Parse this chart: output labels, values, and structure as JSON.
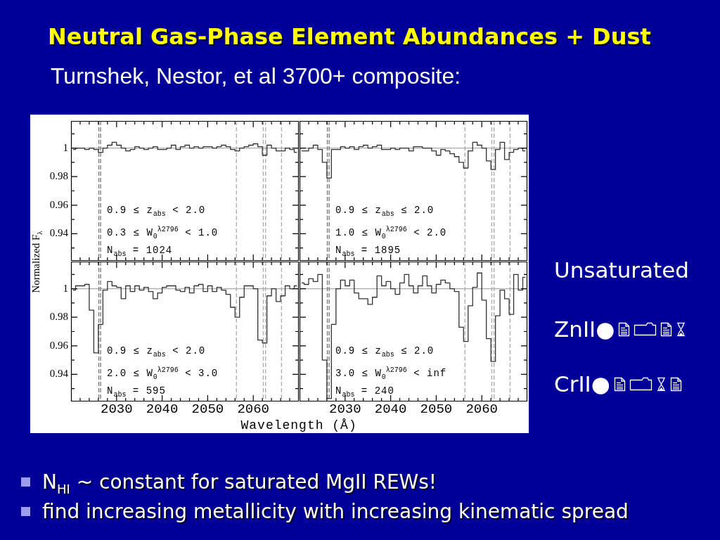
{
  "chart_data": [
    {
      "type": "other",
      "title": "Neutral Gas-Phase Element Abundances + Dust",
      "subtitle": "Turnshek, Nestor, et al 3700+ composite:",
      "annotations": [
        "Unsaturated",
        "ZnII●",
        "CrII●",
        "N$_{HI}$ ~ constant for saturated MgII REWs!",
        "find increasing metallicity with increasing kinematic spread"
      ]
    },
    {
      "type": "step",
      "x": [
        2020.5,
        2021.5,
        2022.5,
        2023.5,
        2024.5,
        2025.5,
        2026.5,
        2027.5,
        2028.5,
        2029.5,
        2030.5,
        2031.5,
        2032.5,
        2033.5,
        2034.5,
        2035.5,
        2036.5,
        2037.5,
        2038.5,
        2039.5,
        2040.5,
        2041.5,
        2042.5,
        2043.5,
        2044.5,
        2045.5,
        2046.5,
        2047.5,
        2048.5,
        2049.5,
        2050.5,
        2051.5,
        2052.5,
        2053.5,
        2054.5,
        2055.5,
        2056.5,
        2057.5,
        2058.5,
        2059.5,
        2060.5,
        2061.5,
        2062.5,
        2063.5,
        2064.5,
        2065.5,
        2066.5,
        2067.5,
        2068.5,
        2069.5
      ],
      "values": [
        0.999,
        1,
        1,
        0.999,
        1,
        0.999,
        0.997,
        1,
        1.002,
        1.004,
        1.002,
        1,
        0.998,
        0.999,
        1.001,
        1,
        0.999,
        1,
        1.001,
        0.999,
        0.999,
        1,
        1.002,
        0.999,
        1.001,
        1.002,
        1,
        1.001,
        1,
        1.001,
        1.001,
        1,
        1.001,
        1.002,
        1.001,
        0.999,
        0.998,
        1,
        1.001,
        1.002,
        1.003,
        1.001,
        0.995,
        1.002,
        1,
        0.998,
        0.998,
        1,
        0.999,
        0.997
      ],
      "color": "#333333",
      "xlim": [
        2020,
        2070
      ],
      "ylim": [
        0.921,
        1.019
      ],
      "xticks": [
        {
          "value": 2022,
          "label": null
        },
        {
          "value": 2024,
          "label": null
        },
        {
          "value": 2026,
          "label": null
        },
        {
          "value": 2028,
          "label": null
        },
        2030,
        {
          "value": 2032,
          "label": null
        },
        {
          "value": 2034,
          "label": null
        },
        {
          "value": 2036,
          "label": null
        },
        {
          "value": 2038,
          "label": null
        },
        2040,
        {
          "value": 2042,
          "label": null
        },
        {
          "value": 2044,
          "label": null
        },
        {
          "value": 2046,
          "label": null
        },
        {
          "value": 2048,
          "label": null
        },
        2050,
        {
          "value": 2052,
          "label": null
        },
        {
          "value": 2054,
          "label": null
        },
        {
          "value": 2056,
          "label": null
        },
        {
          "value": 2058,
          "label": null
        },
        2060,
        {
          "value": 2062,
          "label": null
        },
        {
          "value": 2064,
          "label": null
        },
        {
          "value": 2066,
          "label": null
        },
        {
          "value": 2068,
          "label": null
        }
      ],
      "yticks": [
        {
          "value": 0.93,
          "label": null
        },
        0.94,
        {
          "value": 0.95,
          "label": null
        },
        0.96,
        {
          "value": 0.97,
          "label": null
        },
        0.98,
        {
          "value": 0.99,
          "label": null
        },
        1,
        {
          "value": 1.01,
          "label": null
        }
      ],
      "ref_lines": [
        {
          "axis": "y",
          "value": 1,
          "color": "#aaaaaa",
          "line_style": "solid"
        },
        {
          "axis": "x",
          "value": 2026.1,
          "color": "#777777",
          "line_style": "dashed"
        },
        {
          "axis": "x",
          "value": 2026.5,
          "color": "#777777",
          "line_style": "dashed"
        },
        {
          "axis": "x",
          "value": 2056.3,
          "color": "#aaaaaa",
          "line_style": "dashed"
        },
        {
          "axis": "x",
          "value": 2062.2,
          "color": "#aaaaaa",
          "line_style": "dashed"
        },
        {
          "axis": "x",
          "value": 2062.7,
          "color": "#aaaaaa",
          "line_style": "dashed"
        },
        {
          "axis": "x",
          "value": 2066.2,
          "color": "#aaaaaa",
          "line_style": "dashed"
        }
      ],
      "annotations": [
        "0.9 ≤ z$_{abs}$ < 2.0",
        "0.3 ≤ W$_{0}$$^{λ2796}$ < 1.0",
        "N$_{abs}$ = 1024"
      ],
      "tick_labels": "y"
    },
    {
      "type": "step",
      "x": [
        2020.5,
        2021.5,
        2022.5,
        2023.5,
        2024.5,
        2025.5,
        2026.5,
        2027.5,
        2028.5,
        2029.5,
        2030.5,
        2031.5,
        2032.5,
        2033.5,
        2034.5,
        2035.5,
        2036.5,
        2037.5,
        2038.5,
        2039.5,
        2040.5,
        2041.5,
        2042.5,
        2043.5,
        2044.5,
        2045.5,
        2046.5,
        2047.5,
        2048.5,
        2049.5,
        2050.5,
        2051.5,
        2052.5,
        2053.5,
        2054.5,
        2055.5,
        2056.5,
        2057.5,
        2058.5,
        2059.5,
        2060.5,
        2061.5,
        2062.5,
        2063.5,
        2064.5,
        2065.5,
        2066.5,
        2067.5,
        2068.5,
        2069.5
      ],
      "values": [
        0.998,
        0.998,
        1,
        1.002,
        0.999,
        0.99,
        0.979,
        0.999,
        0.999,
        1.001,
        1,
        1.001,
        0.999,
        1.001,
        1.002,
        1,
        1.001,
        1.002,
        0.999,
        0.999,
        1,
        0.999,
        1,
        1,
        0.998,
        1.001,
        1.001,
        1,
        1,
        0.998,
        0.995,
        0.999,
        0.998,
        0.996,
        0.994,
        0.99,
        0.986,
        0.998,
        1.004,
        1.002,
        1,
        0.991,
        0.985,
        0.999,
        1.004,
        0.992,
        0.997,
        0.999,
        1,
        0.998
      ],
      "color": "#333333",
      "xlim": [
        2020,
        2070
      ],
      "ylim": [
        0.921,
        1.019
      ],
      "xticks": [
        {
          "value": 2022,
          "label": null
        },
        {
          "value": 2024,
          "label": null
        },
        {
          "value": 2026,
          "label": null
        },
        {
          "value": 2028,
          "label": null
        },
        2030,
        {
          "value": 2032,
          "label": null
        },
        {
          "value": 2034,
          "label": null
        },
        {
          "value": 2036,
          "label": null
        },
        {
          "value": 2038,
          "label": null
        },
        2040,
        {
          "value": 2042,
          "label": null
        },
        {
          "value": 2044,
          "label": null
        },
        {
          "value": 2046,
          "label": null
        },
        {
          "value": 2048,
          "label": null
        },
        2050,
        {
          "value": 2052,
          "label": null
        },
        {
          "value": 2054,
          "label": null
        },
        {
          "value": 2056,
          "label": null
        },
        {
          "value": 2058,
          "label": null
        },
        2060,
        {
          "value": 2062,
          "label": null
        },
        {
          "value": 2064,
          "label": null
        },
        {
          "value": 2066,
          "label": null
        },
        {
          "value": 2068,
          "label": null
        }
      ],
      "yticks": [
        {
          "value": 0.93,
          "label": null
        },
        0.94,
        {
          "value": 0.95,
          "label": null
        },
        0.96,
        {
          "value": 0.97,
          "label": null
        },
        0.98,
        {
          "value": 0.99,
          "label": null
        },
        1,
        {
          "value": 1.01,
          "label": null
        }
      ],
      "ref_lines": [
        {
          "axis": "y",
          "value": 1,
          "color": "#aaaaaa",
          "line_style": "solid"
        },
        {
          "axis": "x",
          "value": 2026.1,
          "color": "#777777",
          "line_style": "dashed"
        },
        {
          "axis": "x",
          "value": 2026.5,
          "color": "#777777",
          "line_style": "dashed"
        },
        {
          "axis": "x",
          "value": 2056.3,
          "color": "#aaaaaa",
          "line_style": "dashed"
        },
        {
          "axis": "x",
          "value": 2062.2,
          "color": "#aaaaaa",
          "line_style": "dashed"
        },
        {
          "axis": "x",
          "value": 2062.7,
          "color": "#aaaaaa",
          "line_style": "dashed"
        },
        {
          "axis": "x",
          "value": 2066.2,
          "color": "#aaaaaa",
          "line_style": "dashed"
        }
      ],
      "annotations": [
        "0.9 ≤ z$_{abs}$ ≤ 2.0",
        "1.0 ≤ W$_{0}$$^{λ2796}$ < 2.0",
        "N$_{abs}$ = 1895"
      ],
      "tick_labels": false
    },
    {
      "type": "step",
      "x": [
        2020.5,
        2021.5,
        2022.5,
        2023.5,
        2024.5,
        2025.5,
        2026.5,
        2027.5,
        2028.5,
        2029.5,
        2030.5,
        2031.5,
        2032.5,
        2033.5,
        2034.5,
        2035.5,
        2036.5,
        2037.5,
        2038.5,
        2039.5,
        2040.5,
        2041.5,
        2042.5,
        2043.5,
        2044.5,
        2045.5,
        2046.5,
        2047.5,
        2048.5,
        2049.5,
        2050.5,
        2051.5,
        2052.5,
        2053.5,
        2054.5,
        2055.5,
        2056.5,
        2057.5,
        2058.5,
        2059.5,
        2060.5,
        2061.5,
        2062.5,
        2063.5,
        2064.5,
        2065.5,
        2066.5,
        2067.5,
        2068.5,
        2069.5
      ],
      "values": [
        0.999,
        1.002,
        1.002,
        1.003,
        0.985,
        0.955,
        0.975,
        0.999,
        1.005,
        1.002,
        1.001,
        0.993,
        1.002,
        0.998,
        1.002,
        0.999,
        1.001,
        0.998,
        0.993,
        0.997,
        1.001,
        1.002,
        1.002,
        0.999,
        0.998,
        1.001,
        0.997,
        1.002,
        1.003,
        0.998,
        1.002,
        0.998,
        1.001,
        0.999,
        0.996,
        0.987,
        0.98,
        0.994,
        1.002,
        1.002,
        1,
        0.964,
        0.962,
        0.995,
        1,
        0.991,
        0.995,
        1.002,
        1,
        1.002
      ],
      "color": "#333333",
      "xlim": [
        2020,
        2070
      ],
      "ylim": [
        0.921,
        1.019
      ],
      "xticks": [
        {
          "value": 2022,
          "label": null
        },
        {
          "value": 2024,
          "label": null
        },
        {
          "value": 2026,
          "label": null
        },
        {
          "value": 2028,
          "label": null
        },
        2030,
        {
          "value": 2032,
          "label": null
        },
        {
          "value": 2034,
          "label": null
        },
        {
          "value": 2036,
          "label": null
        },
        {
          "value": 2038,
          "label": null
        },
        2040,
        {
          "value": 2042,
          "label": null
        },
        {
          "value": 2044,
          "label": null
        },
        {
          "value": 2046,
          "label": null
        },
        {
          "value": 2048,
          "label": null
        },
        2050,
        {
          "value": 2052,
          "label": null
        },
        {
          "value": 2054,
          "label": null
        },
        {
          "value": 2056,
          "label": null
        },
        {
          "value": 2058,
          "label": null
        },
        2060,
        {
          "value": 2062,
          "label": null
        },
        {
          "value": 2064,
          "label": null
        },
        {
          "value": 2066,
          "label": null
        },
        {
          "value": 2068,
          "label": null
        }
      ],
      "yticks": [
        {
          "value": 0.93,
          "label": null
        },
        0.94,
        {
          "value": 0.95,
          "label": null
        },
        0.96,
        {
          "value": 0.97,
          "label": null
        },
        0.98,
        {
          "value": 0.99,
          "label": null
        },
        1,
        {
          "value": 1.01,
          "label": null
        }
      ],
      "ref_lines": [
        {
          "axis": "y",
          "value": 1,
          "color": "#aaaaaa",
          "line_style": "solid"
        },
        {
          "axis": "x",
          "value": 2026.1,
          "color": "#777777",
          "line_style": "dashed"
        },
        {
          "axis": "x",
          "value": 2026.5,
          "color": "#777777",
          "line_style": "dashed"
        },
        {
          "axis": "x",
          "value": 2056.3,
          "color": "#aaaaaa",
          "line_style": "dashed"
        },
        {
          "axis": "x",
          "value": 2062.2,
          "color": "#aaaaaa",
          "line_style": "dashed"
        },
        {
          "axis": "x",
          "value": 2062.7,
          "color": "#aaaaaa",
          "line_style": "dashed"
        },
        {
          "axis": "x",
          "value": 2066.2,
          "color": "#aaaaaa",
          "line_style": "dashed"
        }
      ],
      "annotations": [
        "0.9 ≤ z$_{abs}$ < 2.0",
        "2.0 ≤ W$_{0}$$^{λ2796}$ < 3.0",
        "N$_{abs}$ = 595"
      ],
      "xlabel": "Wavelength (Å)",
      "ylabel": "Normalized F$_{λ}$"
    },
    {
      "type": "step",
      "x": [
        2020.5,
        2021.5,
        2022.5,
        2023.5,
        2024.5,
        2025.5,
        2026.5,
        2027.5,
        2028.5,
        2029.5,
        2030.5,
        2031.5,
        2032.5,
        2033.5,
        2034.5,
        2035.5,
        2036.5,
        2037.5,
        2038.5,
        2039.5,
        2040.5,
        2041.5,
        2042.5,
        2043.5,
        2044.5,
        2045.5,
        2046.5,
        2047.5,
        2048.5,
        2049.5,
        2050.5,
        2051.5,
        2052.5,
        2053.5,
        2054.5,
        2055.5,
        2056.5,
        2057.5,
        2058.5,
        2059.5,
        2060.5,
        2061.5,
        2062.5,
        2063.5,
        2064.5,
        2065.5,
        2066.5,
        2067.5,
        2068.5,
        2069.5
      ],
      "values": [
        1.004,
        1.003,
        1.007,
        1.005,
        1.01,
        0.95,
        0.923,
        0.975,
        1,
        1.006,
        1.002,
        1.006,
        0.997,
        0.993,
        0.993,
        0.989,
        0.994,
        1.009,
        1.002,
        1.005,
        1,
        0.996,
        1.004,
        1.01,
        1.002,
        0.997,
        1.002,
        1.009,
        1.002,
        0.997,
        1.003,
        1.006,
        1.004,
        1,
        0.998,
        0.973,
        0.963,
        0.988,
        1.001,
        1.011,
        0.992,
        0.965,
        0.949,
        0.981,
        0.999,
        0.993,
        0.982,
        1.01,
        0.999,
        1.008
      ],
      "color": "#333333",
      "xlim": [
        2020,
        2070
      ],
      "ylim": [
        0.921,
        1.019
      ],
      "xticks": [
        {
          "value": 2022,
          "label": null
        },
        {
          "value": 2024,
          "label": null
        },
        {
          "value": 2026,
          "label": null
        },
        {
          "value": 2028,
          "label": null
        },
        2030,
        {
          "value": 2032,
          "label": null
        },
        {
          "value": 2034,
          "label": null
        },
        {
          "value": 2036,
          "label": null
        },
        {
          "value": 2038,
          "label": null
        },
        2040,
        {
          "value": 2042,
          "label": null
        },
        {
          "value": 2044,
          "label": null
        },
        {
          "value": 2046,
          "label": null
        },
        {
          "value": 2048,
          "label": null
        },
        2050,
        {
          "value": 2052,
          "label": null
        },
        {
          "value": 2054,
          "label": null
        },
        {
          "value": 2056,
          "label": null
        },
        {
          "value": 2058,
          "label": null
        },
        2060,
        {
          "value": 2062,
          "label": null
        },
        {
          "value": 2064,
          "label": null
        },
        {
          "value": 2066,
          "label": null
        },
        {
          "value": 2068,
          "label": null
        }
      ],
      "yticks": [
        {
          "value": 0.93,
          "label": null
        },
        0.94,
        {
          "value": 0.95,
          "label": null
        },
        0.96,
        {
          "value": 0.97,
          "label": null
        },
        0.98,
        {
          "value": 0.99,
          "label": null
        },
        1,
        {
          "value": 1.01,
          "label": null
        }
      ],
      "ref_lines": [
        {
          "axis": "y",
          "value": 1,
          "color": "#aaaaaa",
          "line_style": "solid"
        },
        {
          "axis": "x",
          "value": 2026.1,
          "color": "#777777",
          "line_style": "dashed"
        },
        {
          "axis": "x",
          "value": 2026.5,
          "color": "#777777",
          "line_style": "dashed"
        },
        {
          "axis": "x",
          "value": 2056.3,
          "color": "#aaaaaa",
          "line_style": "dashed"
        },
        {
          "axis": "x",
          "value": 2062.2,
          "color": "#aaaaaa",
          "line_style": "dashed"
        },
        {
          "axis": "x",
          "value": 2062.7,
          "color": "#aaaaaa",
          "line_style": "dashed"
        },
        {
          "axis": "x",
          "value": 2066.2,
          "color": "#aaaaaa",
          "line_style": "dashed"
        }
      ],
      "annotations": [
        "0.9 ≤ z$_{abs}$ ≤ 2.0",
        "3.0 ≤ W$_{0}$$^{λ2796}$ < inf",
        "N$_{abs}$ = 240"
      ],
      "tick_labels": "x"
    }
  ]
}
